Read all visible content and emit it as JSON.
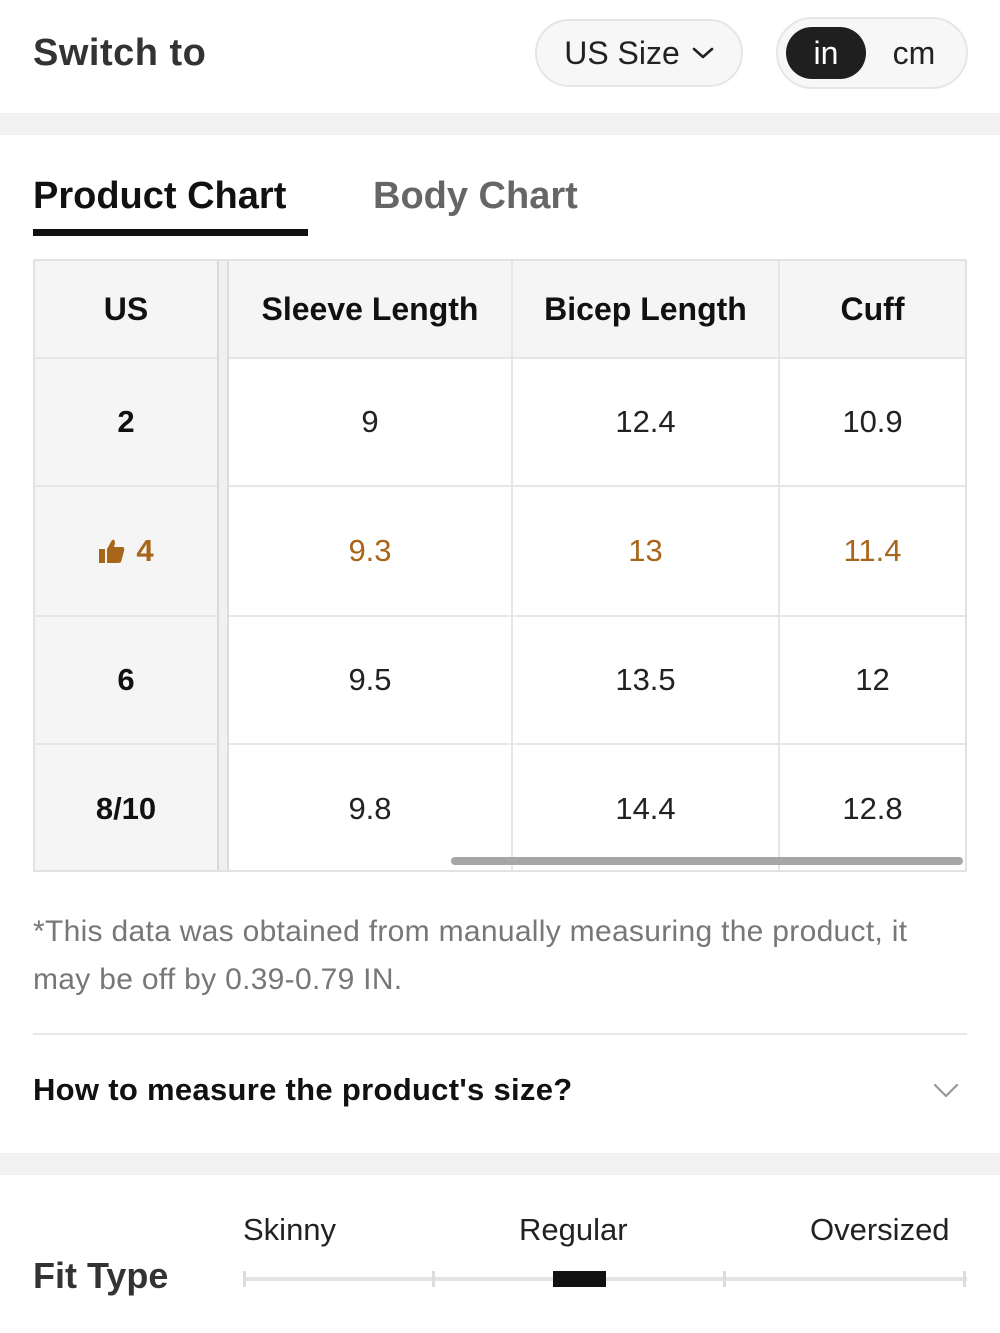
{
  "header": {
    "switch_to_label": "Switch to",
    "size_system": "US Size",
    "units": [
      "in",
      "cm"
    ],
    "selected_unit": "in"
  },
  "tabs": [
    {
      "label": "Product Chart",
      "active": true
    },
    {
      "label": "Body Chart",
      "active": false
    }
  ],
  "table": {
    "columns": [
      "US",
      "Sleeve Length",
      "Bicep Length",
      "Cuff"
    ],
    "rows": [
      {
        "size": "2",
        "values": [
          "9",
          "12.4",
          "10.9"
        ],
        "recommended": false
      },
      {
        "size": "4",
        "values": [
          "9.3",
          "13",
          "11.4"
        ],
        "recommended": true
      },
      {
        "size": "6",
        "values": [
          "9.5",
          "13.5",
          "12"
        ],
        "recommended": false
      },
      {
        "size": "8/10",
        "values": [
          "9.8",
          "14.4",
          "12.8"
        ],
        "recommended": false
      }
    ],
    "recommended_color": "#a8661a",
    "recommended_icon": "thumbs-up-icon"
  },
  "note": "*This data was obtained from manually measuring the product, it may be off by 0.39-0.79 IN.",
  "measure": {
    "label": "How to measure the product's size?"
  },
  "fit": {
    "title": "Fit Type",
    "labels": [
      "Skinny",
      "Regular",
      "Oversized"
    ],
    "selected": "Regular"
  }
}
